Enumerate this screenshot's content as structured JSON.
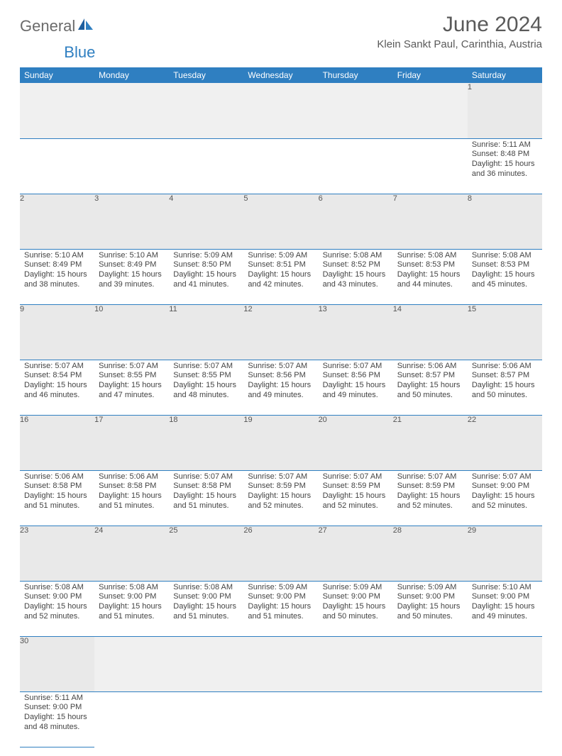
{
  "brand": {
    "word1": "General",
    "word2": "Blue"
  },
  "colors": {
    "header_bg": "#2f7fc1",
    "daynum_bg": "#e9e9e9",
    "row_divider": "#2f7fc1",
    "text": "#444444",
    "title_text": "#5a5a5a"
  },
  "title": "June 2024",
  "location": "Klein Sankt Paul, Carinthia, Austria",
  "weekdays": [
    "Sunday",
    "Monday",
    "Tuesday",
    "Wednesday",
    "Thursday",
    "Friday",
    "Saturday"
  ],
  "first_weekday_index": 6,
  "days": [
    {
      "n": 1,
      "sunrise": "5:11 AM",
      "sunset": "8:48 PM",
      "daylight": "15 hours and 36 minutes."
    },
    {
      "n": 2,
      "sunrise": "5:10 AM",
      "sunset": "8:49 PM",
      "daylight": "15 hours and 38 minutes."
    },
    {
      "n": 3,
      "sunrise": "5:10 AM",
      "sunset": "8:49 PM",
      "daylight": "15 hours and 39 minutes."
    },
    {
      "n": 4,
      "sunrise": "5:09 AM",
      "sunset": "8:50 PM",
      "daylight": "15 hours and 41 minutes."
    },
    {
      "n": 5,
      "sunrise": "5:09 AM",
      "sunset": "8:51 PM",
      "daylight": "15 hours and 42 minutes."
    },
    {
      "n": 6,
      "sunrise": "5:08 AM",
      "sunset": "8:52 PM",
      "daylight": "15 hours and 43 minutes."
    },
    {
      "n": 7,
      "sunrise": "5:08 AM",
      "sunset": "8:53 PM",
      "daylight": "15 hours and 44 minutes."
    },
    {
      "n": 8,
      "sunrise": "5:08 AM",
      "sunset": "8:53 PM",
      "daylight": "15 hours and 45 minutes."
    },
    {
      "n": 9,
      "sunrise": "5:07 AM",
      "sunset": "8:54 PM",
      "daylight": "15 hours and 46 minutes."
    },
    {
      "n": 10,
      "sunrise": "5:07 AM",
      "sunset": "8:55 PM",
      "daylight": "15 hours and 47 minutes."
    },
    {
      "n": 11,
      "sunrise": "5:07 AM",
      "sunset": "8:55 PM",
      "daylight": "15 hours and 48 minutes."
    },
    {
      "n": 12,
      "sunrise": "5:07 AM",
      "sunset": "8:56 PM",
      "daylight": "15 hours and 49 minutes."
    },
    {
      "n": 13,
      "sunrise": "5:07 AM",
      "sunset": "8:56 PM",
      "daylight": "15 hours and 49 minutes."
    },
    {
      "n": 14,
      "sunrise": "5:06 AM",
      "sunset": "8:57 PM",
      "daylight": "15 hours and 50 minutes."
    },
    {
      "n": 15,
      "sunrise": "5:06 AM",
      "sunset": "8:57 PM",
      "daylight": "15 hours and 50 minutes."
    },
    {
      "n": 16,
      "sunrise": "5:06 AM",
      "sunset": "8:58 PM",
      "daylight": "15 hours and 51 minutes."
    },
    {
      "n": 17,
      "sunrise": "5:06 AM",
      "sunset": "8:58 PM",
      "daylight": "15 hours and 51 minutes."
    },
    {
      "n": 18,
      "sunrise": "5:07 AM",
      "sunset": "8:58 PM",
      "daylight": "15 hours and 51 minutes."
    },
    {
      "n": 19,
      "sunrise": "5:07 AM",
      "sunset": "8:59 PM",
      "daylight": "15 hours and 52 minutes."
    },
    {
      "n": 20,
      "sunrise": "5:07 AM",
      "sunset": "8:59 PM",
      "daylight": "15 hours and 52 minutes."
    },
    {
      "n": 21,
      "sunrise": "5:07 AM",
      "sunset": "8:59 PM",
      "daylight": "15 hours and 52 minutes."
    },
    {
      "n": 22,
      "sunrise": "5:07 AM",
      "sunset": "9:00 PM",
      "daylight": "15 hours and 52 minutes."
    },
    {
      "n": 23,
      "sunrise": "5:08 AM",
      "sunset": "9:00 PM",
      "daylight": "15 hours and 52 minutes."
    },
    {
      "n": 24,
      "sunrise": "5:08 AM",
      "sunset": "9:00 PM",
      "daylight": "15 hours and 51 minutes."
    },
    {
      "n": 25,
      "sunrise": "5:08 AM",
      "sunset": "9:00 PM",
      "daylight": "15 hours and 51 minutes."
    },
    {
      "n": 26,
      "sunrise": "5:09 AM",
      "sunset": "9:00 PM",
      "daylight": "15 hours and 51 minutes."
    },
    {
      "n": 27,
      "sunrise": "5:09 AM",
      "sunset": "9:00 PM",
      "daylight": "15 hours and 50 minutes."
    },
    {
      "n": 28,
      "sunrise": "5:09 AM",
      "sunset": "9:00 PM",
      "daylight": "15 hours and 50 minutes."
    },
    {
      "n": 29,
      "sunrise": "5:10 AM",
      "sunset": "9:00 PM",
      "daylight": "15 hours and 49 minutes."
    },
    {
      "n": 30,
      "sunrise": "5:11 AM",
      "sunset": "9:00 PM",
      "daylight": "15 hours and 48 minutes."
    }
  ],
  "labels": {
    "sunrise": "Sunrise:",
    "sunset": "Sunset:",
    "daylight": "Daylight:"
  }
}
